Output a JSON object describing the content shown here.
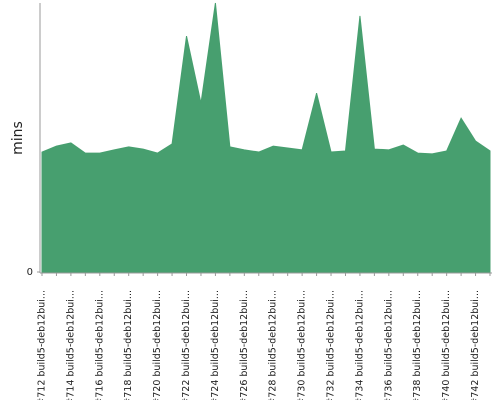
{
  "chart_data": {
    "type": "area",
    "y_label": "mins",
    "color": "#479f6f",
    "categories": [
      "#712 build5-deb12bui...",
      null,
      "#714 build5-deb12bui...",
      null,
      "#716 build5-deb12bui...",
      null,
      "#718 build5-deb12bui...",
      null,
      "#720 build5-deb12bui...",
      null,
      "#722 build5-deb12bui...",
      null,
      "#724 build5-deb12bui...",
      null,
      "#726 build5-deb12bui...",
      null,
      "#728 build5-deb12bui...",
      null,
      "#730 build5-deb12bui...",
      null,
      "#732 build5-deb12bui...",
      null,
      "#734 build5-deb12bui...",
      null,
      "#736 build5-deb12bui...",
      null,
      "#738 build5-deb12bui...",
      null,
      "#740 build5-deb12bui...",
      null,
      "#742 build5-deb12bui...",
      null
    ],
    "values": [
      44.6,
      46.8,
      48.0,
      44.2,
      44.2,
      45.4,
      46.5,
      45.7,
      44.2,
      47.6,
      87.7,
      62.8,
      100,
      46.5,
      45.4,
      44.6,
      46.8,
      46.1,
      45.4,
      66.5,
      44.6,
      45.0,
      95.2,
      45.7,
      45.4,
      47.2,
      44.2,
      43.9,
      45.0,
      57.2,
      48.7,
      45.0
    ],
    "ylim": [
      0,
      100
    ],
    "yticks": [
      0
    ]
  }
}
